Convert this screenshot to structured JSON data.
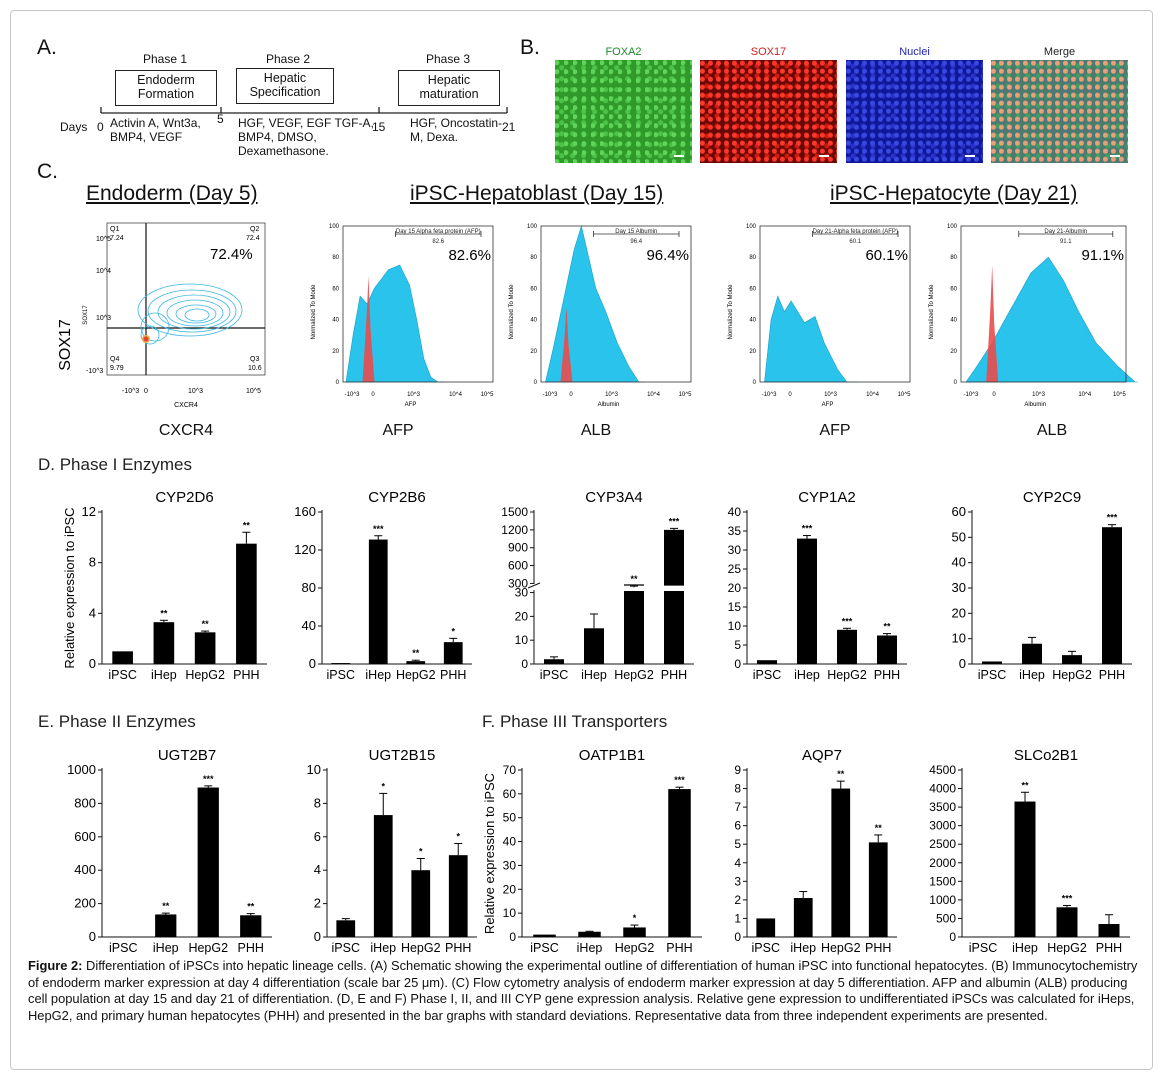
{
  "panelA": {
    "letter": "A.",
    "phases": [
      {
        "title": "Phase 1",
        "box": "Endoderm Formation",
        "factors": "Activin A, Wnt3a, BMP4, VEGF"
      },
      {
        "title": "Phase 2",
        "box": "Hepatic Specification",
        "factors": "HGF, VEGF, EGF TGF-A, BMP4, DMSO, Dexamethasone."
      },
      {
        "title": "Phase 3",
        "box": "Hepatic maturation",
        "factors": "HGF, Oncostatin-M, Dexa."
      }
    ],
    "days_label": "Days",
    "day_ticks": [
      "0",
      "5",
      "15",
      "21"
    ]
  },
  "panelB": {
    "letter": "B.",
    "images": [
      {
        "label": "FOXA2",
        "color": "#1a8a2e"
      },
      {
        "label": "SOX17",
        "color": "#d02020"
      },
      {
        "label": "Nuclei",
        "color": "#2222bb"
      },
      {
        "label": "Merge",
        "color": "#222222"
      }
    ]
  },
  "panelC": {
    "letter": "C.",
    "group_titles": [
      "Endoderm (Day 5)",
      "iPSC-Hepatoblast (Day 15)",
      "iPSC-Hepatocyte (Day 21)"
    ],
    "contour": {
      "ylabel": "SOX17",
      "xlabel_small": "CXCR4",
      "under": "CXCR4",
      "q1": "Q1",
      "q1v": "7.24",
      "q2": "Q2",
      "q2v": "72.4",
      "q3": "Q3",
      "q3v": "10.6",
      "q4": "Q4",
      "q4v": "9.79",
      "big_pct": "72.4%",
      "yticks": [
        "10^5",
        "10^4",
        "10^3",
        "-10^3"
      ],
      "xticks": [
        "-10^3",
        "0",
        "10^3",
        "10^5"
      ]
    },
    "histograms": [
      {
        "gate": "Day 15 Alpha feta protein (AFP)",
        "gate_value": "82.6",
        "big_pct": "82.6%",
        "xlabel_small": "AFP",
        "under": "AFP"
      },
      {
        "gate": "Day 15 Albumin",
        "gate_value": "96.4",
        "big_pct": "96.4%",
        "xlabel_small": "Albumin",
        "under": "ALB"
      },
      {
        "gate": "Day 21-Alpha feta protein (AFP)",
        "gate_value": "60.1",
        "big_pct": "60.1%",
        "xlabel_small": "AFP",
        "under": "AFP"
      },
      {
        "gate": "Day 21-Albumin",
        "gate_value": "91.1",
        "big_pct": "91.1%",
        "xlabel_small": "Albumin",
        "under": "ALB"
      }
    ],
    "hist_ylabel": "Normalized To Mode",
    "hist_yticks": [
      "100",
      "80",
      "60",
      "40",
      "20",
      "0"
    ],
    "hist_xticks": [
      "-10^3",
      "0",
      "10^3",
      "10^4",
      "10^5"
    ]
  },
  "sections": {
    "D": "D. Phase I Enzymes",
    "E": "E. Phase II Enzymes",
    "F": "F. Phase III Transporters"
  },
  "ylabel_rel": "Relative expression to iPSC",
  "chart_data": [
    {
      "type": "bar",
      "title": "CYP2D6",
      "categories": [
        "iPSC",
        "iHep",
        "HepG2",
        "PHH"
      ],
      "values": [
        1,
        3.3,
        2.5,
        9.5
      ],
      "errors": [
        0,
        0.15,
        0.1,
        0.9
      ],
      "sig": [
        "",
        "**",
        "**",
        "**"
      ],
      "ylim": [
        0,
        12
      ],
      "yticks": [
        0,
        4,
        8,
        12
      ],
      "ylabel": "Relative expression to iPSC"
    },
    {
      "type": "bar",
      "title": "CYP2B6",
      "categories": [
        "iPSC",
        "iHep",
        "HepG2",
        "PHH"
      ],
      "values": [
        1,
        131,
        3,
        23
      ],
      "errors": [
        0,
        4,
        1,
        4
      ],
      "sig": [
        "",
        "***",
        "**",
        "*"
      ],
      "ylim": [
        0,
        160
      ],
      "yticks": [
        0,
        40,
        80,
        120,
        160
      ],
      "ylabel": ""
    },
    {
      "type": "bar",
      "title": "CYP3A4",
      "categories": [
        "iPSC",
        "iHep",
        "HepG2",
        "PHH"
      ],
      "values": [
        2,
        15,
        235,
        1200
      ],
      "errors": [
        1,
        6,
        20,
        25
      ],
      "sig": [
        "",
        "",
        "**",
        "***"
      ],
      "ylim": [
        0,
        1500
      ],
      "yticks": [
        0,
        10,
        20,
        30,
        300,
        600,
        900,
        1200,
        1500
      ],
      "axis_break": [
        30,
        300
      ],
      "ylabel": ""
    },
    {
      "type": "bar",
      "title": "CYP1A2",
      "categories": [
        "iPSC",
        "iHep",
        "HepG2",
        "PHH"
      ],
      "values": [
        1,
        33,
        9,
        7.5
      ],
      "errors": [
        0,
        0.8,
        0.4,
        0.5
      ],
      "sig": [
        "",
        "***",
        "***",
        "**"
      ],
      "ylim": [
        0,
        40
      ],
      "yticks": [
        0,
        5,
        10,
        15,
        20,
        25,
        30,
        35,
        40
      ],
      "ylabel": ""
    },
    {
      "type": "bar",
      "title": "CYP2C9",
      "categories": [
        "iPSC",
        "iHep",
        "HepG2",
        "PHH"
      ],
      "values": [
        1,
        8,
        3.5,
        54
      ],
      "errors": [
        0,
        2.5,
        1.5,
        1
      ],
      "sig": [
        "",
        "",
        "",
        "***"
      ],
      "ylim": [
        0,
        60
      ],
      "yticks": [
        0,
        10,
        20,
        30,
        40,
        50,
        60
      ],
      "ylabel": ""
    },
    {
      "type": "bar",
      "title": "UGT2B7",
      "categories": [
        "iPSC",
        "iHep",
        "HepG2",
        "PHH"
      ],
      "values": [
        1,
        135,
        895,
        130
      ],
      "errors": [
        0,
        8,
        10,
        10
      ],
      "sig": [
        "",
        "**",
        "***",
        "**"
      ],
      "ylim": [
        0,
        1000
      ],
      "yticks": [
        0,
        200,
        400,
        600,
        800,
        1000
      ],
      "ylabel": ""
    },
    {
      "type": "bar",
      "title": "UGT2B15",
      "categories": [
        "iPSC",
        "iHep",
        "HepG2",
        "PHH"
      ],
      "values": [
        1,
        7.3,
        4,
        4.9
      ],
      "errors": [
        0.1,
        1.3,
        0.7,
        0.7
      ],
      "sig": [
        "",
        "*",
        "*",
        "*"
      ],
      "ylim": [
        0,
        10
      ],
      "yticks": [
        0,
        2,
        4,
        6,
        8,
        10
      ],
      "ylabel": ""
    },
    {
      "type": "bar",
      "title": "OATP1B1",
      "categories": [
        "iPSC",
        "iHep",
        "HepG2",
        "PHH"
      ],
      "values": [
        1,
        2.2,
        4,
        62
      ],
      "errors": [
        0,
        0.2,
        1,
        0.8
      ],
      "sig": [
        "",
        "",
        "*",
        "***"
      ],
      "ylim": [
        0,
        70
      ],
      "yticks": [
        0,
        10,
        20,
        30,
        40,
        50,
        60,
        70
      ],
      "ylabel": "Relative expression to iPSC"
    },
    {
      "type": "bar",
      "title": "AQP7",
      "categories": [
        "iPSC",
        "iHep",
        "HepG2",
        "PHH"
      ],
      "values": [
        1,
        2.1,
        8,
        5.1
      ],
      "errors": [
        0,
        0.35,
        0.4,
        0.4
      ],
      "sig": [
        "",
        "",
        "**",
        "**"
      ],
      "ylim": [
        0,
        9
      ],
      "yticks": [
        0,
        1,
        2,
        3,
        4,
        5,
        6,
        7,
        8,
        9
      ],
      "ylabel": ""
    },
    {
      "type": "bar",
      "title": "SLCo2B1",
      "categories": [
        "iPSC",
        "iHep",
        "HepG2",
        "PHH"
      ],
      "values": [
        1,
        3650,
        800,
        350
      ],
      "errors": [
        0,
        250,
        50,
        250
      ],
      "sig": [
        "",
        "**",
        "***",
        ""
      ],
      "ylim": [
        0,
        4500
      ],
      "yticks": [
        0,
        500,
        1000,
        1500,
        2000,
        2500,
        3000,
        3500,
        4000,
        4500
      ],
      "ylabel": ""
    }
  ],
  "caption": {
    "label": "Figure 2:",
    "text": " Differentiation of iPSCs into hepatic lineage cells. (A) Schematic showing the experimental outline of differentiation of human iPSC into functional hepatocytes. (B) Immunocytochemistry of endoderm marker expression at day 4 differentiation (scale bar 25 μm). (C) Flow cytometry analysis of endoderm marker expression at day 5 differentiation. AFP and albumin (ALB) producing cell population at day 15 and day 21 of differentiation. (D, E and F) Phase I, II, and III CYP gene expression analysis. Relative gene expression to undifferentiated iPSCs was calculated for iHeps, HepG2, and primary human hepatocytes (PHH) and presented in the bar graphs with standard deviations. Representative data from three independent experiments are presented."
  }
}
